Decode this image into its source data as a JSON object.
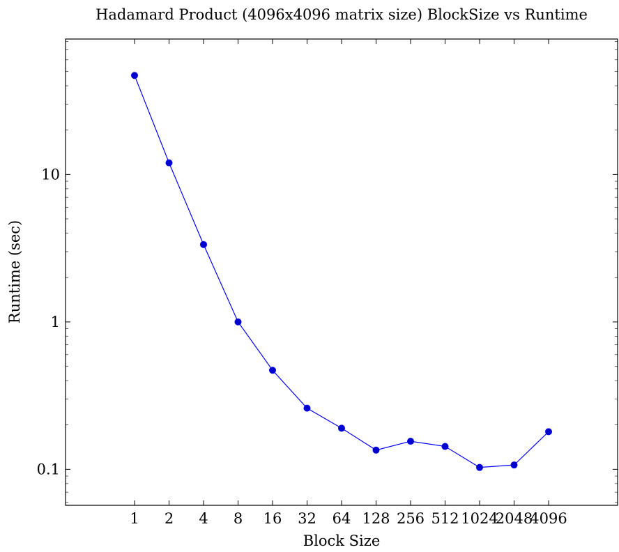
{
  "chart_data": {
    "type": "line",
    "title": "Hadamard Product (4096x4096 matrix size) BlockSize vs Runtime",
    "xlabel": "Block Size",
    "ylabel": "Runtime (sec)",
    "x_scale": "log2",
    "y_scale": "log10",
    "grid": false,
    "x": [
      1,
      2,
      4,
      8,
      16,
      32,
      64,
      128,
      256,
      512,
      1024,
      2048,
      4096
    ],
    "x_tick_labels": [
      "1",
      "2",
      "4",
      "8",
      "16",
      "32",
      "64",
      "128",
      "256",
      "512",
      "1024",
      "2048",
      "4096"
    ],
    "xlim": [
      0.25,
      16384
    ],
    "ylim": [
      0.057,
      83
    ],
    "y_ticks": [
      0.1,
      1,
      10
    ],
    "y_tick_labels": [
      "0.1",
      "1",
      "10"
    ],
    "series": [
      {
        "color": "#0000ff",
        "marker_color": "#0000cc",
        "values": [
          47,
          12,
          3.35,
          1.0,
          0.47,
          0.26,
          0.19,
          0.135,
          0.155,
          0.143,
          0.103,
          0.107,
          0.18
        ]
      }
    ]
  }
}
